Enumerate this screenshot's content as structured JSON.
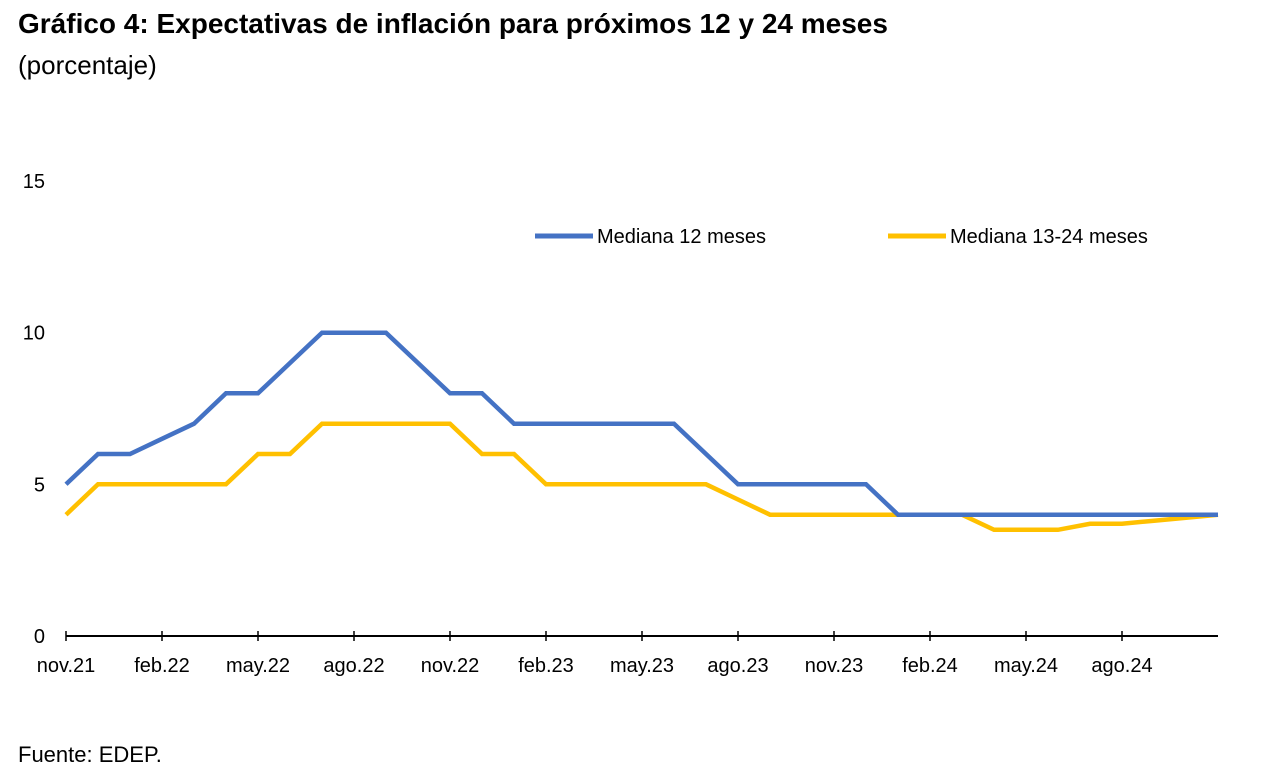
{
  "title": "Gráfico 4: Expectativas de inflación para próximos 12 y 24 meses",
  "subtitle": "(porcentaje)",
  "source": "Fuente: EDEP.",
  "chart_data": {
    "type": "line",
    "x": [
      "nov.21",
      "dic.21",
      "ene.22",
      "feb.22",
      "mar.22",
      "abr.22",
      "may.22",
      "jun.22",
      "jul.22",
      "ago.22",
      "sep.22",
      "oct.22",
      "nov.22",
      "dic.22",
      "ene.23",
      "feb.23",
      "mar.23",
      "abr.23",
      "may.23",
      "jun.23",
      "jul.23",
      "ago.23",
      "sep.23",
      "oct.23",
      "nov.23",
      "dic.23",
      "ene.24",
      "feb.24",
      "mar.24",
      "abr.24",
      "may.24",
      "jun.24",
      "jul.24",
      "ago.24",
      "sep.24",
      "oct.24",
      "nov.24"
    ],
    "xtick_labels": [
      "nov.21",
      "feb.22",
      "may.22",
      "ago.22",
      "nov.22",
      "feb.23",
      "may.23",
      "ago.23",
      "nov.23",
      "feb.24",
      "may.24",
      "ago.24"
    ],
    "xtick_indices": [
      0,
      3,
      6,
      9,
      12,
      15,
      18,
      21,
      24,
      27,
      30,
      33
    ],
    "ylim": [
      0,
      15
    ],
    "yticks": [
      0,
      5,
      10,
      15
    ],
    "legend_position": "top-right",
    "grid": false,
    "series": [
      {
        "name": "Mediana 12 meses",
        "color": "#4472C4",
        "values": [
          5,
          6,
          6,
          6.5,
          7,
          8,
          8,
          9,
          10,
          10,
          10,
          9,
          8,
          8,
          7,
          7,
          7,
          7,
          7,
          7,
          6,
          5,
          5,
          5,
          5,
          5,
          4,
          4,
          4,
          4,
          4,
          4,
          4,
          4,
          4,
          4,
          4
        ]
      },
      {
        "name": "Mediana 13-24 meses",
        "color": "#FFC000",
        "values": [
          4,
          5,
          5,
          5,
          5,
          5,
          6,
          6,
          7,
          7,
          7,
          7,
          7,
          6,
          6,
          5,
          5,
          5,
          5,
          5,
          5,
          4.5,
          4,
          4,
          4,
          4,
          4,
          4,
          4,
          3.5,
          3.5,
          3.5,
          3.7,
          3.7,
          3.8,
          3.9,
          4
        ]
      }
    ]
  }
}
